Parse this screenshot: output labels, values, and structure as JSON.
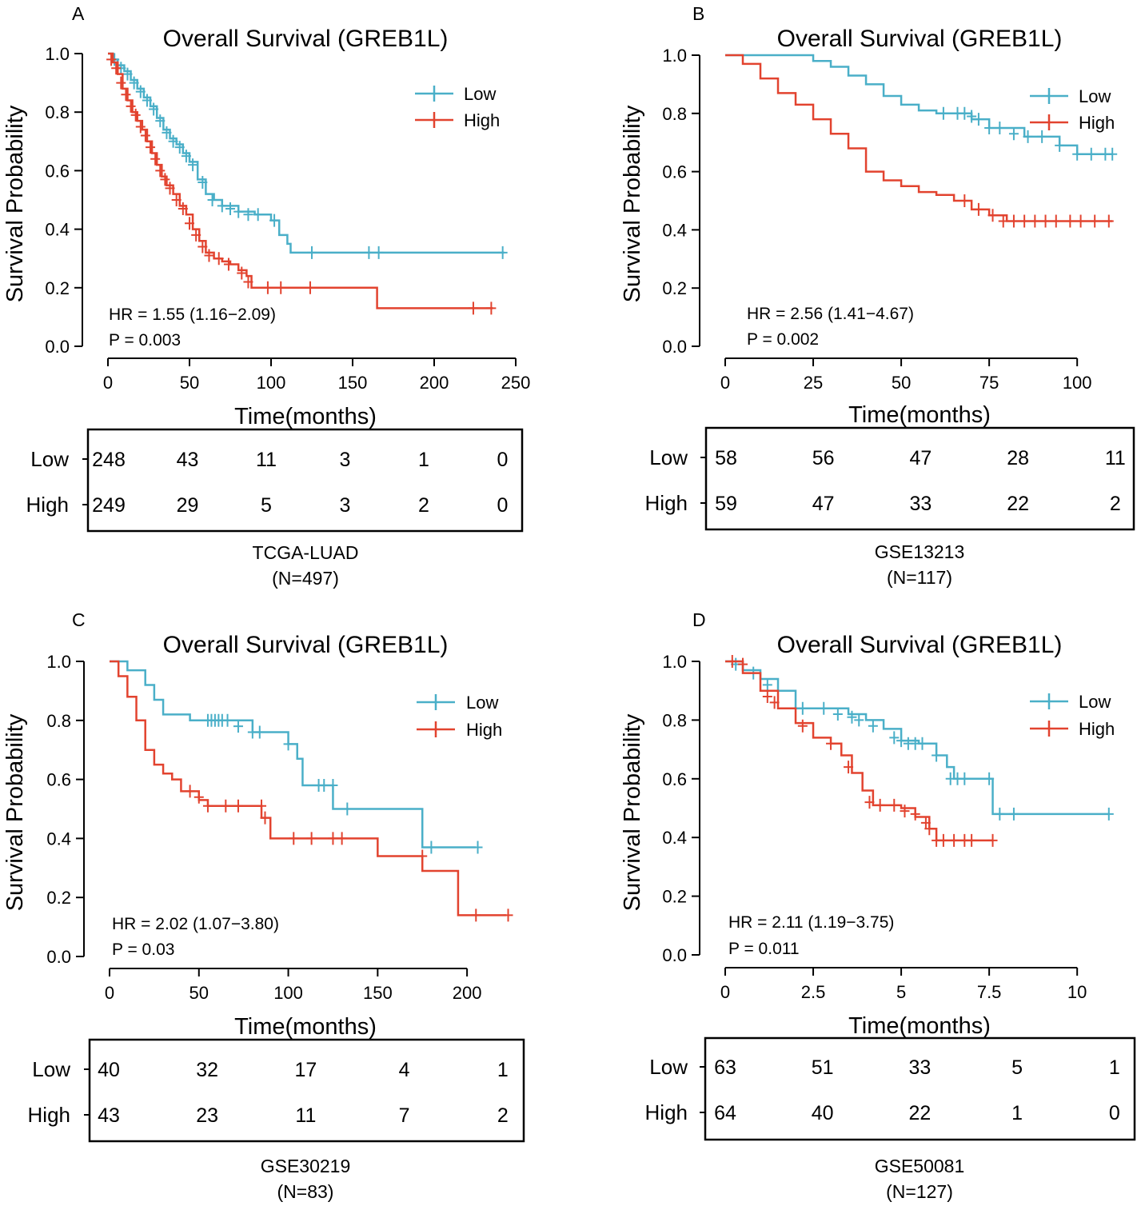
{
  "colors": {
    "low": "#4AAFC8",
    "high": "#E2432F",
    "axis": "#000000"
  },
  "chart_data": [
    {
      "panel": "A",
      "type": "line",
      "title": "Overall Survival (GREB1L)",
      "xlabel": "Time(months)",
      "ylabel": "Survival Probability",
      "xlim": [
        0,
        250
      ],
      "ylim": [
        0,
        1
      ],
      "xticks": [
        0,
        50,
        100,
        150,
        200,
        250
      ],
      "xtick_labels": [
        "0",
        "50",
        "100",
        "150",
        "200",
        "250"
      ],
      "yticks": [
        0,
        0.2,
        0.4,
        0.6,
        0.8,
        1.0
      ],
      "ytick_labels": [
        "0.0",
        "0.2",
        "0.4",
        "0.6",
        "0.8",
        "1.0"
      ],
      "legend": [
        "Low",
        "High"
      ],
      "hr_text": "HR = 1.55 (1.16−2.09)",
      "p_text": "P = 0.003",
      "series": [
        {
          "name": "Low",
          "color": "#4AAFC8",
          "x": [
            0,
            3,
            6,
            10,
            14,
            18,
            22,
            26,
            30,
            34,
            38,
            42,
            46,
            50,
            55,
            60,
            65,
            70,
            80,
            90,
            100,
            105,
            110,
            112,
            175,
            243
          ],
          "y": [
            1.0,
            0.98,
            0.96,
            0.94,
            0.91,
            0.88,
            0.85,
            0.82,
            0.78,
            0.74,
            0.71,
            0.69,
            0.66,
            0.63,
            0.57,
            0.52,
            0.5,
            0.48,
            0.46,
            0.45,
            0.43,
            0.38,
            0.35,
            0.32,
            0.32,
            0.32
          ],
          "censor_x": [
            4,
            8,
            12,
            16,
            20,
            24,
            28,
            32,
            36,
            40,
            44,
            48,
            52,
            58,
            64,
            70,
            75,
            80,
            86,
            92,
            102,
            125,
            160,
            166,
            242
          ],
          "censor_y": [
            0.98,
            0.95,
            0.93,
            0.9,
            0.87,
            0.84,
            0.81,
            0.77,
            0.73,
            0.7,
            0.68,
            0.65,
            0.62,
            0.56,
            0.5,
            0.48,
            0.47,
            0.46,
            0.45,
            0.45,
            0.43,
            0.32,
            0.32,
            0.32,
            0.32
          ]
        },
        {
          "name": "High",
          "color": "#E2432F",
          "x": [
            0,
            3,
            6,
            9,
            12,
            15,
            18,
            21,
            24,
            27,
            30,
            33,
            36,
            40,
            44,
            48,
            52,
            56,
            60,
            65,
            70,
            75,
            80,
            85,
            88,
            165,
            236
          ],
          "y": [
            1.0,
            0.97,
            0.93,
            0.88,
            0.84,
            0.8,
            0.77,
            0.74,
            0.7,
            0.66,
            0.62,
            0.58,
            0.55,
            0.52,
            0.48,
            0.45,
            0.4,
            0.36,
            0.32,
            0.3,
            0.29,
            0.28,
            0.26,
            0.24,
            0.2,
            0.13,
            0.13
          ],
          "censor_x": [
            2,
            5,
            8,
            11,
            14,
            17,
            20,
            23,
            26,
            29,
            32,
            35,
            38,
            42,
            46,
            50,
            54,
            58,
            62,
            68,
            74,
            82,
            86,
            98,
            106,
            124,
            224,
            235
          ],
          "censor_y": [
            0.98,
            0.95,
            0.9,
            0.86,
            0.82,
            0.79,
            0.75,
            0.72,
            0.68,
            0.64,
            0.6,
            0.57,
            0.54,
            0.5,
            0.47,
            0.42,
            0.38,
            0.34,
            0.31,
            0.3,
            0.28,
            0.25,
            0.22,
            0.2,
            0.2,
            0.2,
            0.13,
            0.13
          ]
        }
      ],
      "risk_table": {
        "rows": [
          {
            "label": "Low",
            "values": [
              "248",
              "43",
              "11",
              "3",
              "1",
              "0"
            ]
          },
          {
            "label": "High",
            "values": [
              "249",
              "29",
              "5",
              "3",
              "2",
              "0"
            ]
          }
        ]
      },
      "cohort": "TCGA-LUAD",
      "n_text": "(N=497)"
    },
    {
      "panel": "B",
      "type": "line",
      "title": "Overall Survival (GREB1L)",
      "xlabel": "Time(months)",
      "ylabel": "Survival Probability",
      "xlim": [
        0,
        112
      ],
      "ylim": [
        0,
        1
      ],
      "xticks": [
        0,
        25,
        50,
        75,
        100
      ],
      "xtick_labels": [
        "0",
        "25",
        "50",
        "75",
        "100"
      ],
      "yticks": [
        0,
        0.2,
        0.4,
        0.6,
        0.8,
        1.0
      ],
      "ytick_labels": [
        "0.0",
        "0.2",
        "0.4",
        "0.6",
        "0.8",
        "1.0"
      ],
      "legend": [
        "Low",
        "High"
      ],
      "hr_text": "HR = 2.56 (1.41−4.67)",
      "p_text": "P = 0.002",
      "series": [
        {
          "name": "Low",
          "color": "#4AAFC8",
          "x": [
            0,
            12,
            25,
            30,
            35,
            40,
            45,
            50,
            55,
            60,
            65,
            70,
            75,
            85,
            95,
            100,
            105,
            110
          ],
          "y": [
            1.0,
            1.0,
            0.98,
            0.96,
            0.93,
            0.9,
            0.86,
            0.83,
            0.81,
            0.8,
            0.8,
            0.78,
            0.75,
            0.72,
            0.69,
            0.66,
            0.66,
            0.66
          ],
          "censor_x": [
            62,
            66,
            68,
            70,
            72,
            75,
            78,
            82,
            86,
            90,
            95,
            100,
            104,
            108,
            110
          ],
          "censor_y": [
            0.8,
            0.8,
            0.8,
            0.79,
            0.78,
            0.75,
            0.75,
            0.73,
            0.72,
            0.72,
            0.69,
            0.66,
            0.66,
            0.66,
            0.66
          ]
        },
        {
          "name": "High",
          "color": "#E2432F",
          "x": [
            0,
            5,
            10,
            15,
            20,
            25,
            30,
            35,
            40,
            45,
            50,
            55,
            60,
            65,
            70,
            75,
            80,
            110
          ],
          "y": [
            1.0,
            0.97,
            0.92,
            0.87,
            0.83,
            0.78,
            0.73,
            0.68,
            0.6,
            0.57,
            0.55,
            0.53,
            0.52,
            0.5,
            0.47,
            0.45,
            0.43,
            0.43
          ],
          "censor_x": [
            68,
            72,
            76,
            79,
            82,
            85,
            88,
            91,
            94,
            98,
            101,
            105,
            109
          ],
          "censor_y": [
            0.5,
            0.47,
            0.45,
            0.43,
            0.43,
            0.43,
            0.43,
            0.43,
            0.43,
            0.43,
            0.43,
            0.43,
            0.43
          ]
        }
      ],
      "risk_table": {
        "rows": [
          {
            "label": "Low",
            "values": [
              "58",
              "56",
              "47",
              "28",
              "11"
            ]
          },
          {
            "label": "High",
            "values": [
              "59",
              "47",
              "33",
              "22",
              "2"
            ]
          }
        ]
      },
      "cohort": "GSE13213",
      "n_text": "(N=117)"
    },
    {
      "panel": "C",
      "type": "line",
      "title": "Overall Survival (GREB1L)",
      "xlabel": "Time(months)",
      "ylabel": "Survival Probability",
      "xlim": [
        0,
        225
      ],
      "ylim": [
        0,
        1
      ],
      "xticks": [
        0,
        50,
        100,
        150,
        200
      ],
      "xtick_labels": [
        "0",
        "50",
        "100",
        "150",
        "200"
      ],
      "yticks": [
        0,
        0.2,
        0.4,
        0.6,
        0.8,
        1.0
      ],
      "ytick_labels": [
        "0.0",
        "0.2",
        "0.4",
        "0.6",
        "0.8",
        "1.0"
      ],
      "legend": [
        "Low",
        "High"
      ],
      "hr_text": "HR = 2.02 (1.07−3.80)",
      "p_text": "P = 0.03",
      "series": [
        {
          "name": "Low",
          "color": "#4AAFC8",
          "x": [
            0,
            10,
            20,
            25,
            30,
            45,
            60,
            80,
            95,
            100,
            105,
            108,
            115,
            125,
            130,
            175,
            205
          ],
          "y": [
            1.0,
            0.97,
            0.92,
            0.87,
            0.82,
            0.8,
            0.8,
            0.76,
            0.76,
            0.72,
            0.67,
            0.58,
            0.58,
            0.5,
            0.5,
            0.37,
            0.37
          ],
          "censor_x": [
            55,
            57,
            59,
            61,
            63,
            66,
            72,
            80,
            84,
            100,
            117,
            120,
            125,
            133,
            180,
            206
          ],
          "censor_y": [
            0.8,
            0.8,
            0.8,
            0.8,
            0.8,
            0.8,
            0.78,
            0.76,
            0.76,
            0.72,
            0.58,
            0.58,
            0.58,
            0.5,
            0.37,
            0.37
          ]
        },
        {
          "name": "High",
          "color": "#E2432F",
          "x": [
            0,
            5,
            10,
            15,
            20,
            25,
            30,
            35,
            40,
            50,
            55,
            70,
            85,
            90,
            100,
            120,
            150,
            175,
            195,
            222
          ],
          "y": [
            1.0,
            0.95,
            0.88,
            0.8,
            0.7,
            0.65,
            0.62,
            0.6,
            0.56,
            0.53,
            0.51,
            0.51,
            0.47,
            0.4,
            0.4,
            0.4,
            0.34,
            0.29,
            0.14,
            0.14
          ],
          "censor_x": [
            45,
            50,
            55,
            65,
            72,
            85,
            87,
            103,
            113,
            125,
            130,
            175,
            205,
            223
          ],
          "censor_y": [
            0.56,
            0.54,
            0.51,
            0.51,
            0.51,
            0.51,
            0.47,
            0.4,
            0.4,
            0.4,
            0.4,
            0.34,
            0.14,
            0.14
          ]
        }
      ],
      "risk_table": {
        "rows": [
          {
            "label": "Low",
            "values": [
              "40",
              "32",
              "17",
              "4",
              "1"
            ]
          },
          {
            "label": "High",
            "values": [
              "43",
              "23",
              "11",
              "7",
              "2"
            ]
          }
        ]
      },
      "cohort": "GSE30219",
      "n_text": "(N=83)"
    },
    {
      "panel": "D",
      "type": "line",
      "title": "Overall Survival (GREB1L)",
      "xlabel": "Time(months)",
      "ylabel": "Survival Probability",
      "xlim": [
        0,
        11.2
      ],
      "ylim": [
        0,
        1
      ],
      "xticks": [
        0,
        2.5,
        5,
        7.5,
        10
      ],
      "xtick_labels": [
        "0",
        "2.5",
        "5",
        "7.5",
        "10"
      ],
      "yticks": [
        0,
        0.2,
        0.4,
        0.6,
        0.8,
        1.0
      ],
      "ytick_labels": [
        "0.0",
        "0.2",
        "0.4",
        "0.6",
        "0.8",
        "1.0"
      ],
      "legend": [
        "Low",
        "High"
      ],
      "hr_text": "HR = 2.11 (1.19−3.75)",
      "p_text": "P = 0.011",
      "series": [
        {
          "name": "Low",
          "color": "#4AAFC8",
          "x": [
            0,
            0.5,
            1.0,
            1.5,
            2.0,
            3.0,
            3.5,
            4.0,
            4.5,
            5.0,
            5.5,
            6.0,
            6.3,
            6.5,
            7.0,
            7.5,
            7.6,
            10.9
          ],
          "y": [
            1.0,
            0.97,
            0.94,
            0.9,
            0.84,
            0.84,
            0.82,
            0.8,
            0.77,
            0.73,
            0.72,
            0.68,
            0.64,
            0.6,
            0.6,
            0.6,
            0.48,
            0.48
          ],
          "censor_x": [
            0.3,
            0.8,
            1.2,
            2.2,
            2.8,
            3.2,
            3.6,
            3.8,
            4.2,
            4.8,
            5.0,
            5.2,
            5.4,
            5.6,
            6.0,
            6.4,
            6.6,
            6.8,
            7.5,
            7.8,
            8.2,
            10.9
          ],
          "censor_y": [
            0.99,
            0.96,
            0.92,
            0.84,
            0.84,
            0.82,
            0.81,
            0.8,
            0.78,
            0.74,
            0.73,
            0.72,
            0.72,
            0.72,
            0.68,
            0.6,
            0.6,
            0.6,
            0.6,
            0.48,
            0.48,
            0.48
          ]
        },
        {
          "name": "High",
          "color": "#E2432F",
          "x": [
            0,
            0.5,
            1.0,
            1.5,
            2.0,
            2.5,
            3.0,
            3.3,
            3.6,
            3.9,
            4.2,
            4.6,
            5.0,
            5.4,
            5.8,
            6.0,
            7.6
          ],
          "y": [
            1.0,
            0.96,
            0.9,
            0.84,
            0.79,
            0.74,
            0.72,
            0.68,
            0.62,
            0.56,
            0.51,
            0.51,
            0.5,
            0.47,
            0.43,
            0.39,
            0.39
          ],
          "censor_x": [
            0.2,
            0.5,
            1.2,
            1.4,
            2.2,
            3.0,
            3.5,
            4.1,
            4.4,
            4.8,
            5.1,
            5.4,
            5.7,
            5.8,
            6.0,
            6.2,
            6.5,
            6.8,
            7.0,
            7.6
          ],
          "censor_y": [
            1.0,
            0.99,
            0.88,
            0.86,
            0.78,
            0.72,
            0.64,
            0.52,
            0.51,
            0.51,
            0.49,
            0.48,
            0.45,
            0.43,
            0.39,
            0.39,
            0.39,
            0.39,
            0.39,
            0.39
          ]
        }
      ],
      "risk_table": {
        "rows": [
          {
            "label": "Low",
            "values": [
              "63",
              "51",
              "33",
              "5",
              "1"
            ]
          },
          {
            "label": "High",
            "values": [
              "64",
              "40",
              "22",
              "1",
              "0"
            ]
          }
        ]
      },
      "cohort": "GSE50081",
      "n_text": "(N=127)"
    }
  ]
}
